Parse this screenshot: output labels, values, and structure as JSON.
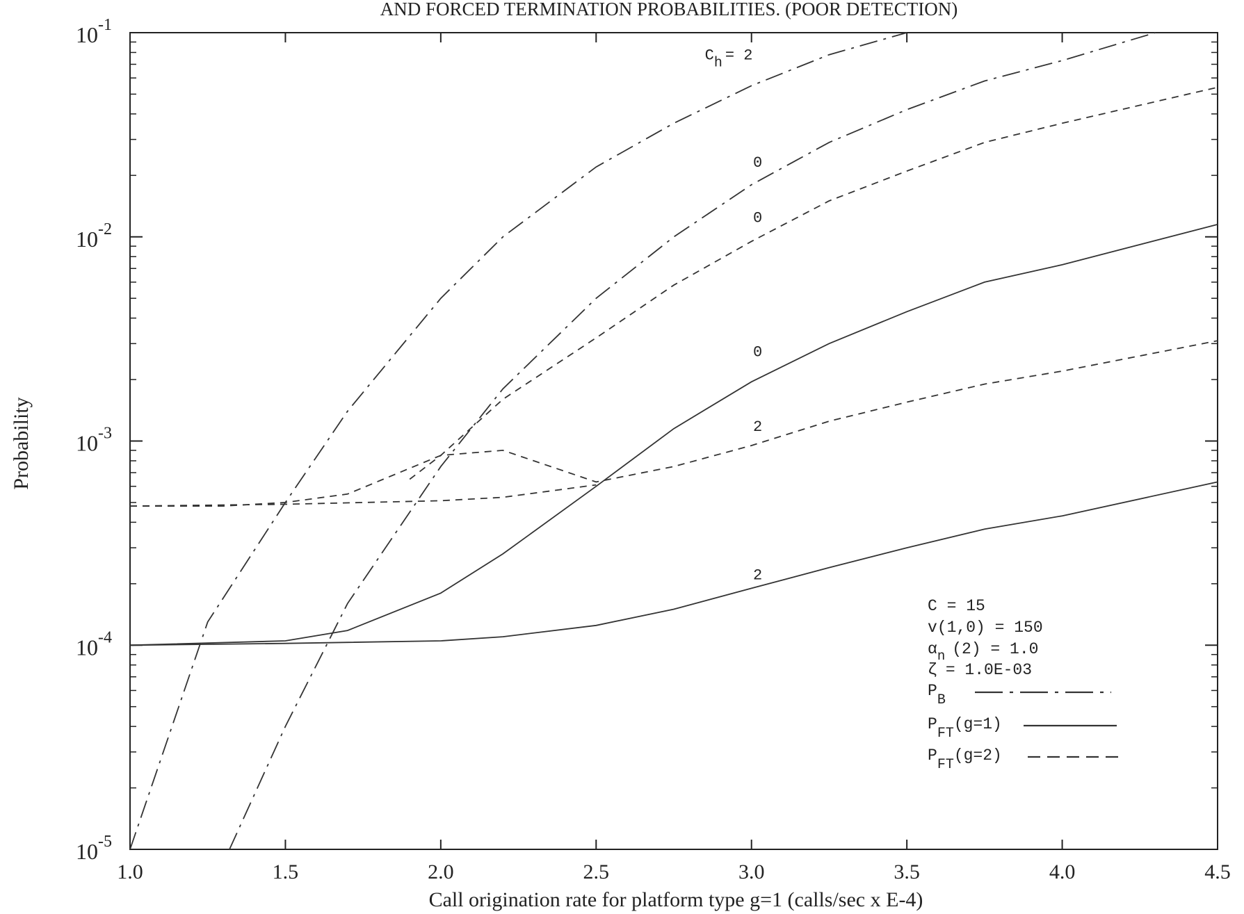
{
  "chart_data": {
    "type": "line",
    "title": "AND FORCED TERMINATION PROBABILITIES.  (POOR DETECTION)",
    "xlabel": "Call origination rate for platform type g=1 (calls/sec x E-4)",
    "ylabel": "Probability",
    "xlim": [
      1.0,
      4.5
    ],
    "ylim": [
      1e-05,
      0.1
    ],
    "yscale": "log",
    "x_ticks": [
      "1.0",
      "1.5",
      "2.0",
      "2.5",
      "3.0",
      "3.5",
      "4.0",
      "4.5"
    ],
    "y_ticks": [
      {
        "base": "10",
        "exp": "-5"
      },
      {
        "base": "10",
        "exp": "-4"
      },
      {
        "base": "10",
        "exp": "-3"
      },
      {
        "base": "10",
        "exp": "-2"
      },
      {
        "base": "10",
        "exp": "-1"
      }
    ],
    "grid": false,
    "legend_position": "bottom-right",
    "parameters": [
      "C = 15",
      "v(1,0) = 150",
      "(2) = 1.0",
      "= 1.0E-03"
    ],
    "parameter_symbols": {
      "alpha": "α",
      "alpha_sub": "n",
      "zeta": "ζ"
    },
    "legend": [
      {
        "label": "P",
        "sub": "B",
        "suffix": "",
        "style": "dashdot"
      },
      {
        "label": "P",
        "sub": "FT",
        "suffix": "(g=1)",
        "style": "solid"
      },
      {
        "label": "P",
        "sub": "FT",
        "suffix": "(g=2)",
        "style": "dashed"
      }
    ],
    "series": [
      {
        "group": "P_B",
        "ch": "2",
        "style": "dashdot",
        "x": [
          1.0,
          1.25,
          1.5,
          1.7,
          2.0,
          2.2,
          2.5,
          2.75,
          3.0,
          3.25,
          3.5
        ],
        "y": [
          1e-05,
          0.00013,
          0.0005,
          0.0014,
          0.005,
          0.01,
          0.022,
          0.036,
          0.055,
          0.078,
          0.1
        ]
      },
      {
        "group": "P_B",
        "ch": "0",
        "style": "dashdot",
        "x": [
          1.32,
          1.5,
          1.7,
          2.0,
          2.2,
          2.5,
          2.75,
          3.0,
          3.25,
          3.5,
          3.75,
          4.0,
          4.3
        ],
        "y": [
          1e-05,
          4e-05,
          0.00016,
          0.00075,
          0.0018,
          0.005,
          0.01,
          0.018,
          0.029,
          0.042,
          0.058,
          0.073,
          0.1
        ]
      },
      {
        "group": "P_FT(g=1)",
        "ch": "0",
        "style": "solid",
        "x": [
          1.0,
          1.5,
          1.7,
          2.0,
          2.2,
          2.5,
          2.75,
          3.0,
          3.25,
          3.5,
          3.75,
          4.0,
          4.5
        ],
        "y": [
          0.0001,
          0.000105,
          0.000118,
          0.00018,
          0.00028,
          0.0006,
          0.00115,
          0.00195,
          0.003,
          0.0043,
          0.006,
          0.0073,
          0.0115
        ]
      },
      {
        "group": "P_FT(g=1)",
        "ch": "2",
        "style": "solid",
        "x": [
          1.0,
          1.5,
          2.0,
          2.2,
          2.5,
          2.75,
          3.0,
          3.25,
          3.5,
          3.75,
          4.0,
          4.5
        ],
        "y": [
          0.0001,
          0.000102,
          0.000105,
          0.00011,
          0.000125,
          0.00015,
          0.00019,
          0.00024,
          0.0003,
          0.00037,
          0.00043,
          0.00063
        ]
      },
      {
        "group": "P_FT(g=2)",
        "ch": "0",
        "style": "dashed",
        "x": [
          1.9,
          2.0,
          2.2,
          2.5,
          2.75,
          3.0,
          3.25,
          3.5,
          3.75,
          4.0,
          4.5
        ],
        "y": [
          0.00065,
          0.00085,
          0.0016,
          0.0032,
          0.0058,
          0.0095,
          0.015,
          0.021,
          0.029,
          0.036,
          0.054
        ]
      },
      {
        "group": "P_FT(g=2)",
        "ch": "2",
        "style": "dashed",
        "x": [
          1.0,
          1.3,
          1.5,
          1.7,
          2.0,
          2.2,
          2.5,
          2.75,
          3.0,
          3.25,
          3.5,
          3.75,
          4.0,
          4.5
        ],
        "y": [
          0.00048,
          0.00048,
          0.0005,
          0.00055,
          0.00085,
          0.0009,
          0.00063,
          0.00075,
          0.00095,
          0.00125,
          0.00155,
          0.0019,
          0.0022,
          0.0031
        ]
      },
      {
        "group": "P_FT(g=2)",
        "ch": "2",
        "style": "dashed",
        "x": [
          1.0,
          1.5,
          2.0,
          2.2,
          2.5
        ],
        "y": [
          0.00048,
          0.00049,
          0.00051,
          0.00053,
          0.00061
        ]
      }
    ],
    "curve_labels": [
      {
        "text": "0",
        "x": 3.02,
        "y": 0.022
      },
      {
        "text": "0",
        "x": 3.02,
        "y": 0.0118
      },
      {
        "text": "0",
        "x": 3.02,
        "y": 0.0026
      },
      {
        "text": "2",
        "x": 3.02,
        "y": 0.00112
      },
      {
        "text": "2",
        "x": 3.02,
        "y": 0.00021
      }
    ],
    "ch_label": {
      "text": "C",
      "sub": "h",
      "eq": "= 2",
      "x": 2.85,
      "y": 0.074
    }
  }
}
